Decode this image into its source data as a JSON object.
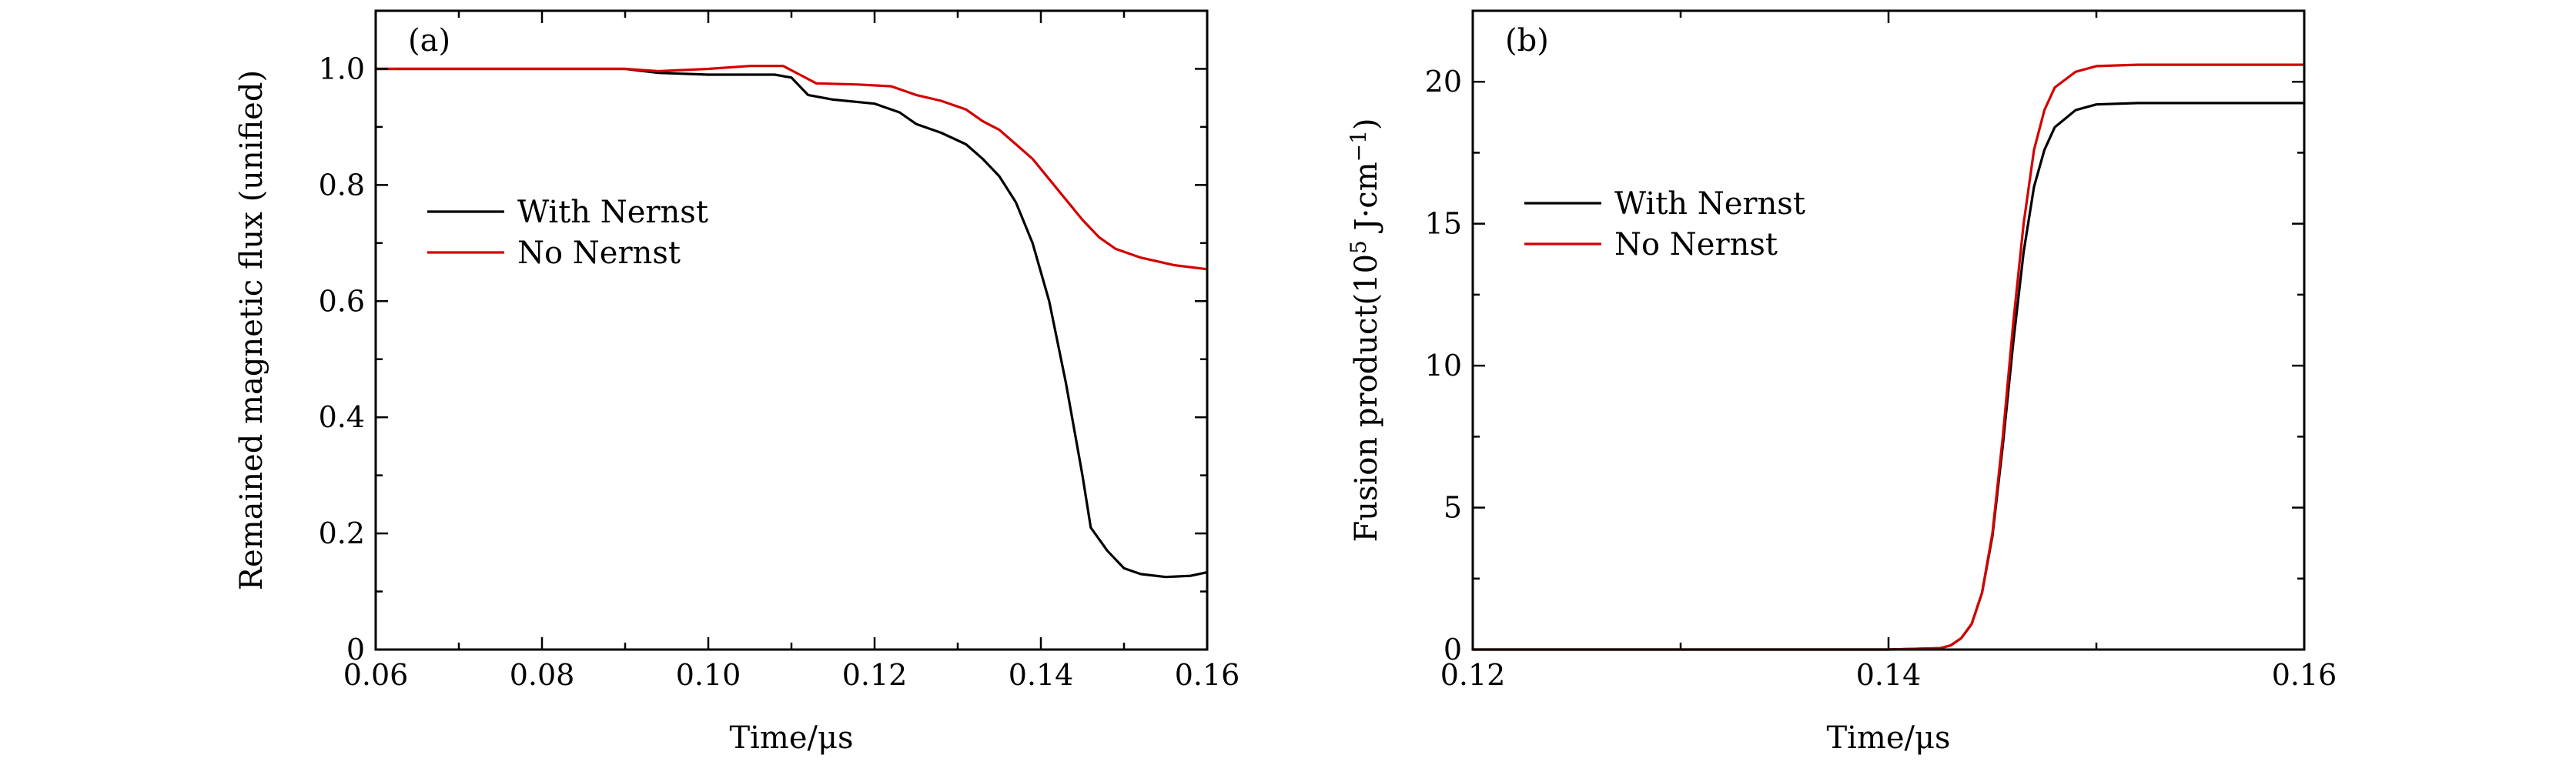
{
  "chart_data": [
    {
      "type": "line",
      "panel_label": "(a)",
      "xlabel": "Time/μs",
      "ylabel": "Remained magnetic flux (unified)",
      "xlim": [
        0.06,
        0.16
      ],
      "ylim": [
        0,
        1.1
      ],
      "x_ticks": [
        0.06,
        0.08,
        0.1,
        0.12,
        0.14,
        0.16
      ],
      "x_tick_labels": [
        "0.06",
        "0.08",
        "0.10",
        "0.12",
        "0.14",
        "0.16"
      ],
      "y_ticks": [
        0,
        0.2,
        0.4,
        0.6,
        0.8,
        1.0
      ],
      "y_tick_labels": [
        "0",
        "0.2",
        "0.4",
        "0.6",
        "0.8",
        "1.0"
      ],
      "grid": false,
      "legend_position": "middle-left",
      "series": [
        {
          "name": "With Nernst",
          "color": "#000000",
          "points": [
            [
              0.06,
              1.0
            ],
            [
              0.07,
              1.0
            ],
            [
              0.08,
              1.0
            ],
            [
              0.09,
              1.0
            ],
            [
              0.094,
              0.993
            ],
            [
              0.1,
              0.99
            ],
            [
              0.108,
              0.99
            ],
            [
              0.11,
              0.985
            ],
            [
              0.112,
              0.955
            ],
            [
              0.115,
              0.947
            ],
            [
              0.12,
              0.94
            ],
            [
              0.123,
              0.925
            ],
            [
              0.125,
              0.905
            ],
            [
              0.128,
              0.89
            ],
            [
              0.131,
              0.87
            ],
            [
              0.133,
              0.845
            ],
            [
              0.135,
              0.815
            ],
            [
              0.137,
              0.77
            ],
            [
              0.139,
              0.7
            ],
            [
              0.141,
              0.6
            ],
            [
              0.143,
              0.46
            ],
            [
              0.145,
              0.3
            ],
            [
              0.146,
              0.21
            ],
            [
              0.148,
              0.17
            ],
            [
              0.15,
              0.14
            ],
            [
              0.152,
              0.13
            ],
            [
              0.155,
              0.125
            ],
            [
              0.158,
              0.127
            ],
            [
              0.16,
              0.133
            ]
          ]
        },
        {
          "name": "No Nernst",
          "color": "#d40000",
          "points": [
            [
              0.06,
              1.0
            ],
            [
              0.07,
              1.0
            ],
            [
              0.08,
              1.0
            ],
            [
              0.09,
              1.0
            ],
            [
              0.094,
              0.996
            ],
            [
              0.1,
              1.0
            ],
            [
              0.105,
              1.005
            ],
            [
              0.109,
              1.005
            ],
            [
              0.111,
              0.99
            ],
            [
              0.113,
              0.975
            ],
            [
              0.118,
              0.973
            ],
            [
              0.122,
              0.97
            ],
            [
              0.125,
              0.955
            ],
            [
              0.128,
              0.945
            ],
            [
              0.131,
              0.93
            ],
            [
              0.133,
              0.91
            ],
            [
              0.135,
              0.895
            ],
            [
              0.137,
              0.87
            ],
            [
              0.139,
              0.845
            ],
            [
              0.141,
              0.81
            ],
            [
              0.143,
              0.775
            ],
            [
              0.145,
              0.74
            ],
            [
              0.147,
              0.71
            ],
            [
              0.149,
              0.69
            ],
            [
              0.152,
              0.675
            ],
            [
              0.156,
              0.662
            ],
            [
              0.16,
              0.655
            ]
          ]
        }
      ]
    },
    {
      "type": "line",
      "panel_label": "(b)",
      "xlabel": "Time/μs",
      "ylabel_parts": [
        "Fusion product(10",
        "5",
        " J·cm",
        "−1",
        ")"
      ],
      "xlim": [
        0.12,
        0.16
      ],
      "ylim": [
        0,
        22.5
      ],
      "x_ticks": [
        0.12,
        0.14,
        0.16
      ],
      "x_tick_labels": [
        "0.12",
        "0.14",
        "0.16"
      ],
      "y_ticks": [
        0,
        5,
        10,
        15,
        20
      ],
      "y_tick_labels": [
        "0",
        "5",
        "10",
        "15",
        "20"
      ],
      "grid": false,
      "legend_position": "upper-left",
      "series": [
        {
          "name": "With Nernst",
          "color": "#000000",
          "points": [
            [
              0.12,
              0.0
            ],
            [
              0.14,
              0.0
            ],
            [
              0.1425,
              0.05
            ],
            [
              0.143,
              0.15
            ],
            [
              0.1435,
              0.4
            ],
            [
              0.144,
              0.9
            ],
            [
              0.1445,
              2.0
            ],
            [
              0.145,
              4.0
            ],
            [
              0.1455,
              7.2
            ],
            [
              0.146,
              10.8
            ],
            [
              0.1465,
              14.0
            ],
            [
              0.147,
              16.3
            ],
            [
              0.1475,
              17.6
            ],
            [
              0.148,
              18.4
            ],
            [
              0.149,
              19.0
            ],
            [
              0.15,
              19.2
            ],
            [
              0.152,
              19.25
            ],
            [
              0.156,
              19.25
            ],
            [
              0.16,
              19.25
            ]
          ]
        },
        {
          "name": "No Nernst",
          "color": "#d40000",
          "points": [
            [
              0.12,
              0.0
            ],
            [
              0.14,
              0.0
            ],
            [
              0.1425,
              0.05
            ],
            [
              0.143,
              0.15
            ],
            [
              0.1435,
              0.4
            ],
            [
              0.144,
              0.9
            ],
            [
              0.1445,
              2.0
            ],
            [
              0.145,
              4.1
            ],
            [
              0.1455,
              7.5
            ],
            [
              0.146,
              11.5
            ],
            [
              0.1465,
              15.0
            ],
            [
              0.147,
              17.6
            ],
            [
              0.1475,
              19.0
            ],
            [
              0.148,
              19.8
            ],
            [
              0.149,
              20.35
            ],
            [
              0.15,
              20.55
            ],
            [
              0.152,
              20.6
            ],
            [
              0.156,
              20.6
            ],
            [
              0.16,
              20.6
            ]
          ]
        }
      ]
    }
  ]
}
